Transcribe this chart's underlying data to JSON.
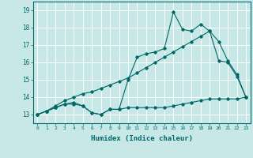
{
  "xlabel": "Humidex (Indice chaleur)",
  "background_color": "#c8e8e8",
  "grid_color": "#b0d8d8",
  "line_color": "#006868",
  "xlim": [
    -0.5,
    23.5
  ],
  "ylim": [
    12.5,
    19.5
  ],
  "xticks": [
    0,
    1,
    2,
    3,
    4,
    5,
    6,
    7,
    8,
    9,
    10,
    11,
    12,
    13,
    14,
    15,
    16,
    17,
    18,
    19,
    20,
    21,
    22,
    23
  ],
  "yticks": [
    13,
    14,
    15,
    16,
    17,
    18,
    19
  ],
  "series1_x": [
    0,
    1,
    2,
    3,
    4,
    5,
    6,
    7,
    8,
    9,
    10,
    11,
    12,
    13,
    14,
    15,
    16,
    17,
    18,
    19,
    20,
    21,
    22,
    23
  ],
  "series1_y": [
    13.0,
    13.2,
    13.4,
    13.6,
    13.6,
    13.5,
    13.1,
    13.0,
    13.3,
    13.3,
    13.4,
    13.4,
    13.4,
    13.4,
    13.4,
    13.5,
    13.6,
    13.7,
    13.8,
    13.9,
    13.9,
    13.9,
    13.9,
    14.0
  ],
  "series2_x": [
    0,
    1,
    2,
    3,
    4,
    5,
    6,
    7,
    8,
    9,
    10,
    11,
    12,
    13,
    14,
    15,
    16,
    17,
    18,
    19,
    20,
    21,
    22,
    23
  ],
  "series2_y": [
    13.0,
    13.2,
    13.5,
    13.8,
    14.0,
    14.2,
    14.3,
    14.5,
    14.7,
    14.9,
    15.1,
    15.4,
    15.7,
    16.0,
    16.3,
    16.6,
    16.9,
    17.2,
    17.5,
    17.8,
    17.2,
    16.1,
    15.3,
    14.0
  ],
  "series3_x": [
    0,
    1,
    2,
    3,
    4,
    5,
    6,
    7,
    8,
    9,
    10,
    11,
    12,
    13,
    14,
    15,
    16,
    17,
    18,
    19,
    20,
    21,
    22,
    23
  ],
  "series3_y": [
    13.0,
    13.2,
    13.4,
    13.6,
    13.7,
    13.5,
    13.1,
    13.0,
    13.3,
    13.3,
    15.0,
    16.3,
    16.5,
    16.6,
    16.8,
    18.9,
    17.9,
    17.8,
    18.2,
    17.8,
    16.1,
    16.0,
    15.2,
    14.0
  ]
}
